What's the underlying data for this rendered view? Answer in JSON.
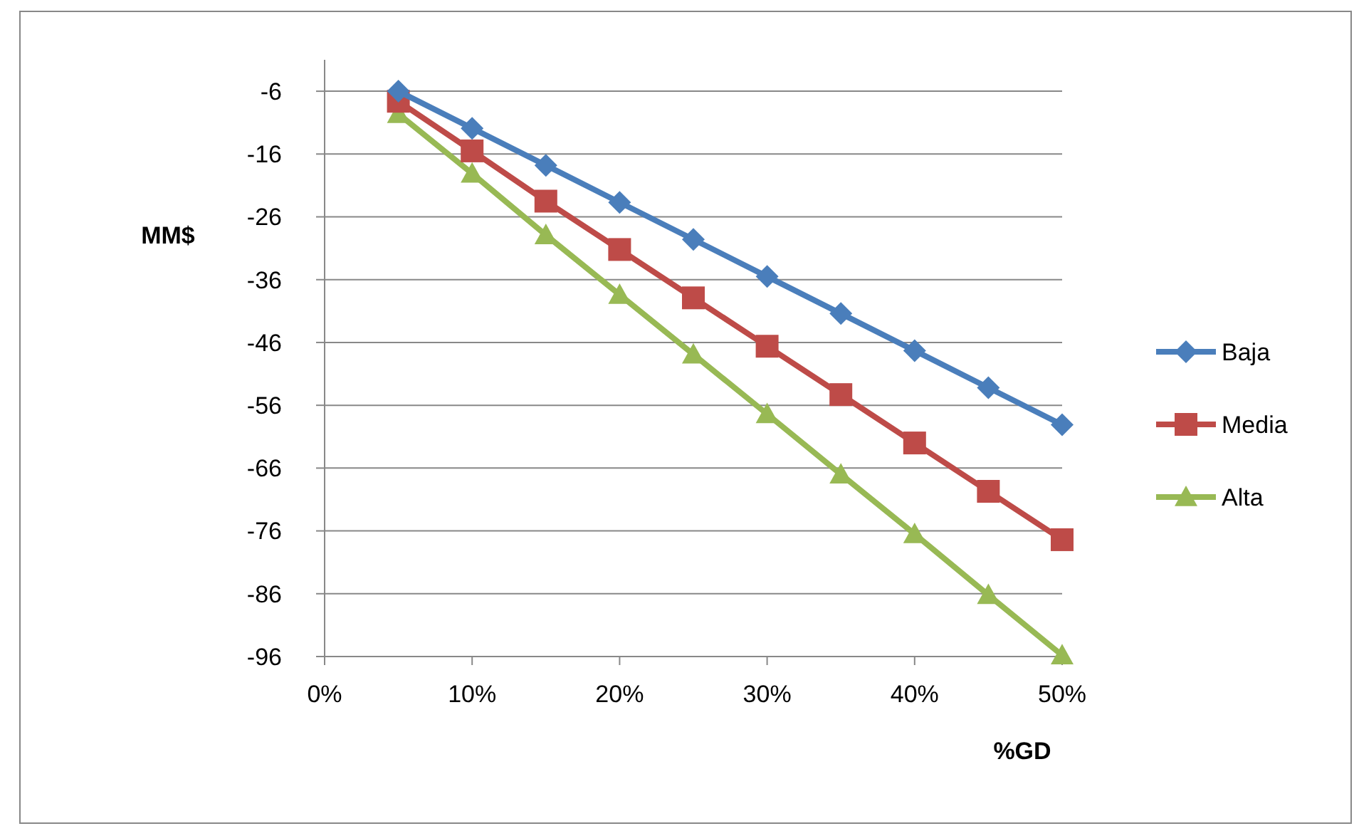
{
  "chart_data": {
    "type": "line",
    "xlabel": "%GD",
    "ylabel": "MM$",
    "xlim": [
      0,
      50
    ],
    "xticks": [
      {
        "value": 0,
        "label": "0%"
      },
      {
        "value": 10,
        "label": "10%"
      },
      {
        "value": 20,
        "label": "20%"
      },
      {
        "value": 30,
        "label": "30%"
      },
      {
        "value": 40,
        "label": "40%"
      },
      {
        "value": 50,
        "label": "50%"
      }
    ],
    "ylim": [
      -96,
      -1
    ],
    "yticks": [
      -96,
      -86,
      -76,
      -66,
      -56,
      -46,
      -36,
      -26,
      -16,
      -6
    ],
    "grid": "y",
    "legend": "right",
    "line_style": "solid",
    "x": [
      5,
      10,
      15,
      20,
      25,
      30,
      35,
      40,
      45,
      50
    ],
    "series": [
      {
        "name": "Baja",
        "color": "#4a7ebb",
        "marker": "diamond",
        "values": [
          -6,
          -11.9,
          -17.8,
          -23.7,
          -29.6,
          -35.5,
          -41.4,
          -47.3,
          -53.2,
          -59.1
        ]
      },
      {
        "name": "Media",
        "color": "#be4b48",
        "marker": "square",
        "values": [
          -7.6,
          -15.5,
          -23.5,
          -31.2,
          -38.9,
          -46.6,
          -54.3,
          -62,
          -69.7,
          -77.4
        ]
      },
      {
        "name": "Alta",
        "color": "#98b954",
        "marker": "triangle",
        "values": [
          -9.6,
          -19.1,
          -28.9,
          -38.4,
          -47.9,
          -57.4,
          -67,
          -76.5,
          -86.2,
          -95.8
        ]
      }
    ]
  }
}
